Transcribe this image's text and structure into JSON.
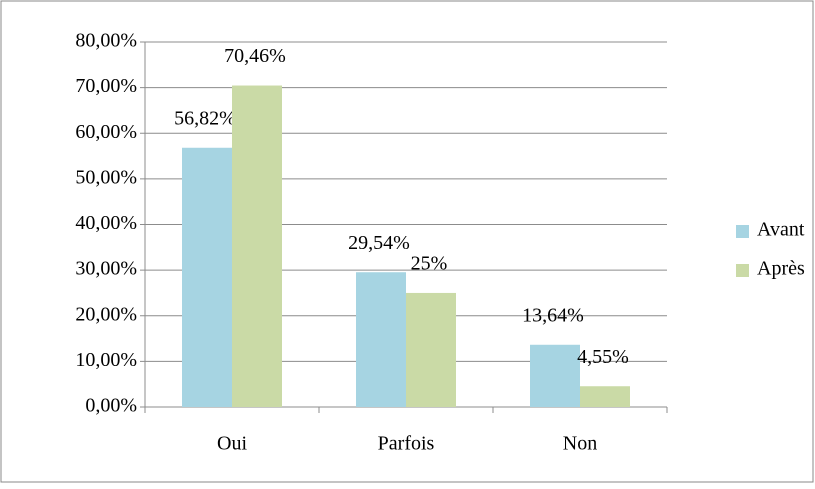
{
  "chart_data": {
    "type": "bar",
    "categories": [
      "Oui",
      "Parfois",
      "Non"
    ],
    "series": [
      {
        "name": "Avant",
        "color": "#a6d4e2",
        "values": [
          56.82,
          29.54,
          13.64
        ],
        "value_labels": [
          "56,82%",
          "29,54%",
          "13,64%"
        ]
      },
      {
        "name": "Après",
        "color": "#cadaa6",
        "values": [
          70.46,
          25,
          4.55
        ],
        "value_labels": [
          "70,46%",
          "25%",
          "4,55%"
        ]
      }
    ],
    "ylim": [
      0,
      80
    ],
    "yticks": [
      {
        "value": 0,
        "label": "0,00%"
      },
      {
        "value": 10,
        "label": "10,00%"
      },
      {
        "value": 20,
        "label": "20,00%"
      },
      {
        "value": 30,
        "label": "30,00%"
      },
      {
        "value": 40,
        "label": "40,00%"
      },
      {
        "value": 50,
        "label": "50,00%"
      },
      {
        "value": 60,
        "label": "60,00%"
      },
      {
        "value": 70,
        "label": "70,00%"
      },
      {
        "value": 80,
        "label": "80,00%"
      }
    ],
    "grid": true,
    "legend": "right"
  }
}
